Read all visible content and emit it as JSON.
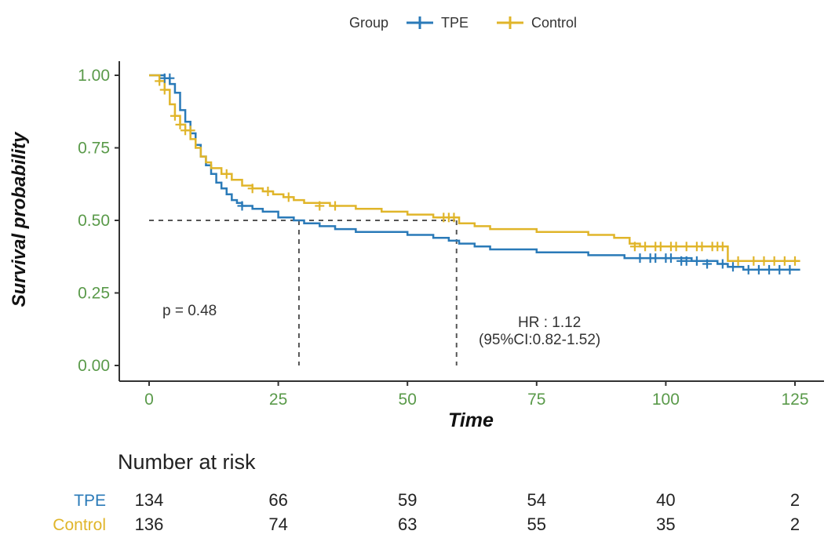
{
  "chart_data": {
    "type": "line",
    "subtype": "kaplan-meier",
    "title": "",
    "xlabel": "Time",
    "ylabel": "Survival probability",
    "xlim": [
      0,
      125
    ],
    "ylim": [
      0,
      1
    ],
    "x_ticks": [
      0,
      25,
      50,
      75,
      100,
      125
    ],
    "y_ticks": [
      0.0,
      0.25,
      0.5,
      0.75,
      1.0
    ],
    "x_tick_labels": [
      "0",
      "25",
      "50",
      "75",
      "100",
      "125"
    ],
    "y_tick_labels": [
      "0.00",
      "0.25",
      "0.50",
      "0.75",
      "1.00"
    ],
    "grid": false,
    "legend": {
      "title": "Group",
      "position": "top",
      "entries": [
        "TPE",
        "Control"
      ]
    },
    "series": [
      {
        "name": "TPE",
        "color": "#2a7ab8",
        "x": [
          0,
          2,
          3,
          4,
          5,
          6,
          7,
          8,
          9,
          10,
          11,
          12,
          13,
          14,
          15,
          16,
          17,
          18,
          20,
          22,
          25,
          28,
          30,
          33,
          36,
          40,
          45,
          50,
          55,
          58,
          60,
          63,
          66,
          70,
          75,
          80,
          85,
          88,
          92,
          95,
          100,
          105,
          110,
          112,
          115,
          120,
          126
        ],
        "y": [
          1.0,
          1.0,
          0.99,
          0.97,
          0.94,
          0.88,
          0.84,
          0.8,
          0.76,
          0.72,
          0.69,
          0.66,
          0.63,
          0.61,
          0.59,
          0.57,
          0.56,
          0.55,
          0.54,
          0.53,
          0.51,
          0.5,
          0.49,
          0.48,
          0.47,
          0.46,
          0.46,
          0.45,
          0.44,
          0.43,
          0.42,
          0.41,
          0.4,
          0.4,
          0.39,
          0.39,
          0.38,
          0.38,
          0.37,
          0.37,
          0.37,
          0.36,
          0.35,
          0.34,
          0.33,
          0.33,
          0.33
        ],
        "censor_x": [
          3,
          4,
          18,
          95,
          97,
          98,
          100,
          101,
          103,
          104,
          106,
          108,
          111,
          113,
          116,
          118,
          120,
          122,
          124
        ],
        "censor_y": [
          0.99,
          0.99,
          0.55,
          0.37,
          0.37,
          0.37,
          0.37,
          0.37,
          0.36,
          0.36,
          0.36,
          0.35,
          0.35,
          0.34,
          0.33,
          0.33,
          0.33,
          0.33,
          0.33
        ]
      },
      {
        "name": "Control",
        "color": "#e0b52a",
        "x": [
          0,
          2,
          3,
          4,
          5,
          6,
          7,
          8,
          9,
          10,
          11,
          12,
          14,
          16,
          18,
          20,
          22,
          24,
          26,
          28,
          30,
          35,
          40,
          45,
          50,
          55,
          58,
          60,
          63,
          66,
          70,
          75,
          80,
          85,
          90,
          93,
          95,
          100,
          105,
          110,
          112,
          115,
          120,
          126
        ],
        "y": [
          1.0,
          0.98,
          0.95,
          0.9,
          0.86,
          0.83,
          0.81,
          0.78,
          0.75,
          0.72,
          0.7,
          0.68,
          0.66,
          0.64,
          0.62,
          0.61,
          0.6,
          0.59,
          0.58,
          0.57,
          0.56,
          0.55,
          0.54,
          0.53,
          0.52,
          0.51,
          0.51,
          0.49,
          0.48,
          0.47,
          0.47,
          0.46,
          0.46,
          0.45,
          0.44,
          0.42,
          0.41,
          0.41,
          0.41,
          0.41,
          0.36,
          0.36,
          0.36,
          0.36
        ],
        "censor_x": [
          2,
          3,
          5,
          6,
          7,
          8,
          15,
          20,
          23,
          27,
          33,
          36,
          57,
          58,
          59,
          94,
          96,
          98,
          99,
          101,
          102,
          104,
          106,
          107,
          109,
          110,
          111,
          114,
          117,
          119,
          121,
          123,
          125
        ],
        "censor_y": [
          0.98,
          0.95,
          0.86,
          0.83,
          0.81,
          0.81,
          0.66,
          0.61,
          0.6,
          0.58,
          0.55,
          0.55,
          0.51,
          0.51,
          0.51,
          0.41,
          0.41,
          0.41,
          0.41,
          0.41,
          0.41,
          0.41,
          0.41,
          0.41,
          0.41,
          0.41,
          0.41,
          0.36,
          0.36,
          0.36,
          0.36,
          0.36,
          0.36
        ]
      }
    ],
    "median_lines": [
      {
        "x": 29,
        "y": 0.5
      },
      {
        "x": 59.5,
        "y": 0.5
      }
    ],
    "annotations": {
      "p_value": "p = 0.48",
      "hr_line1": "HR : 1.12",
      "hr_line2": "(95%CI:0.82-1.52)"
    },
    "risk_table": {
      "title": "Number at risk",
      "times": [
        0,
        25,
        50,
        75,
        100,
        125
      ],
      "rows": [
        {
          "group": "TPE",
          "counts": [
            "134",
            "66",
            "59",
            "54",
            "40",
            "2"
          ]
        },
        {
          "group": "Control",
          "counts": [
            "136",
            "74",
            "63",
            "55",
            "35",
            "2"
          ]
        }
      ]
    }
  },
  "colors": {
    "tpe": "#2a7ab8",
    "control": "#e0b52a",
    "tick_label": "#5a9a4a",
    "axis": "#333333"
  }
}
